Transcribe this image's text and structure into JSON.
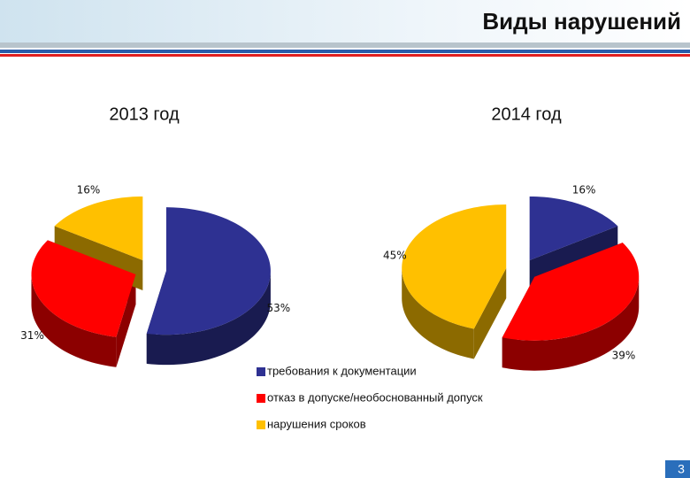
{
  "slide": {
    "title": "Виды нарушений",
    "page_number": "3"
  },
  "chart_data": {
    "type": "pie",
    "categories": [
      "2013 год",
      "2014 год"
    ],
    "series": [
      {
        "name": "требования к документации",
        "color": "#2e3192",
        "values": [
          53,
          16
        ],
        "value_labels": [
          "53%",
          "16%"
        ]
      },
      {
        "name": "отказ в допуске/необоснованный допуск",
        "color": "#ff0000",
        "values": [
          31,
          39
        ],
        "value_labels": [
          "31%",
          "39%"
        ]
      },
      {
        "name": "нарушения сроков",
        "color": "#ffc000",
        "values": [
          16,
          45
        ],
        "value_labels": [
          "16%",
          "45%"
        ]
      }
    ]
  }
}
